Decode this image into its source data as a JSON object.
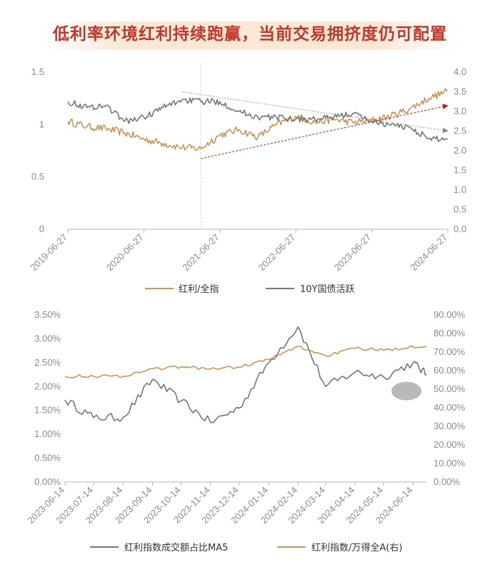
{
  "title": "低利率环境红利持续跑赢，当前交易拥挤度仍可配置",
  "colors": {
    "gold": "#c8955a",
    "gray": "#767676",
    "title": "#c0372b",
    "arrow": "#b22222",
    "axis": "#b5b5b5"
  },
  "chart_data": [
    {
      "type": "line",
      "title": "",
      "x_dates": [
        "2019-06-27",
        "2019-09-27",
        "2019-12-27",
        "2020-03-27",
        "2020-06-27",
        "2020-09-27",
        "2020-12-27",
        "2021-03-27",
        "2021-06-27",
        "2021-09-27",
        "2021-12-27",
        "2022-03-27",
        "2022-06-27",
        "2022-09-27",
        "2022-12-27",
        "2023-03-27",
        "2023-06-27",
        "2023-09-27",
        "2023-12-27",
        "2024-03-27",
        "2024-06-27"
      ],
      "xticks": [
        "2019-06-27",
        "2020-06-27",
        "2021-06-27",
        "2022-06-27",
        "2023-06-27",
        "2024-06-27"
      ],
      "y_left_ticks": [
        "0",
        "0.5",
        "1",
        "1.5"
      ],
      "y_right_ticks": [
        "0.0",
        "0.5",
        "1.0",
        "1.5",
        "2.0",
        "2.5",
        "3.0",
        "3.5",
        "4.0"
      ],
      "ylim_left": [
        0,
        1.5
      ],
      "ylim_right": [
        0,
        4
      ],
      "vertical_marker_date": "2021-03-27",
      "series": [
        {
          "name": "红利/全指",
          "axis": "left",
          "color": "#c8955a",
          "values": [
            1.03,
            0.98,
            0.96,
            0.92,
            0.86,
            0.82,
            0.78,
            0.77,
            0.9,
            0.95,
            0.88,
            1.0,
            1.08,
            1.02,
            1.05,
            1.02,
            1.04,
            1.08,
            1.15,
            1.25,
            1.32
          ]
        },
        {
          "name": "10Y国债活跃",
          "axis": "right",
          "color": "#767676",
          "values": [
            3.25,
            3.1,
            3.15,
            2.75,
            2.85,
            3.1,
            3.3,
            3.25,
            3.25,
            3.0,
            2.85,
            2.85,
            2.8,
            2.8,
            2.85,
            2.95,
            2.75,
            2.65,
            2.6,
            2.3,
            2.3
          ]
        }
      ],
      "annotations": [
        {
          "type": "arrow",
          "from": [
            "2020-12-27",
            3.5
          ],
          "to": [
            "2024-06-27",
            2.5
          ],
          "axis": "right"
        },
        {
          "type": "arrow",
          "from": [
            "2021-03-27",
            1.8
          ],
          "to": [
            "2024-06-27",
            3.15
          ],
          "axis": "right"
        }
      ]
    },
    {
      "type": "line",
      "title": "",
      "x_dates": [
        "2023-06-14",
        "2023-07-14",
        "2023-08-14",
        "2023-09-14",
        "2023-10-14",
        "2023-11-14",
        "2023-12-14",
        "2024-01-14",
        "2024-02-14",
        "2024-03-14",
        "2024-04-14",
        "2024-05-14",
        "2024-06-14",
        "2024-06-28"
      ],
      "xticks": [
        "2023-06-14",
        "2023-07-14",
        "2023-08-14",
        "2023-09-14",
        "2023-10-14",
        "2023-11-14",
        "2023-12-14",
        "2024-01-14",
        "2024-02-14",
        "2024-03-14",
        "2024-04-14",
        "2024-05-14",
        "2024-06-14"
      ],
      "y_left_ticks": [
        "0.00%",
        "0.50%",
        "1.00%",
        "1.50%",
        "2.00%",
        "2.50%",
        "3.00%",
        "3.50%"
      ],
      "y_right_ticks": [
        "0.00%",
        "10.00%",
        "20.00%",
        "30.00%",
        "40.00%",
        "50.00%",
        "60.00%",
        "70.00%",
        "80.00%",
        "90.00%"
      ],
      "ylim_left": [
        0,
        3.5
      ],
      "ylim_right": [
        0,
        90
      ],
      "series": [
        {
          "name": "红利指数成交额占比MA5",
          "axis": "left",
          "color": "#767676",
          "values": [
            1.72,
            1.35,
            1.35,
            2.15,
            1.7,
            1.25,
            1.55,
            2.5,
            3.25,
            2.0,
            2.3,
            2.2,
            2.5,
            2.25
          ]
        },
        {
          "name": "红利指数/万得全A(右)",
          "axis": "right",
          "color": "#c8955a",
          "values": [
            57,
            57,
            57,
            61,
            62,
            61,
            62,
            66,
            73,
            68,
            72,
            71,
            73,
            73
          ]
        }
      ],
      "highlight_ellipse_date": "2024-06-07"
    }
  ]
}
